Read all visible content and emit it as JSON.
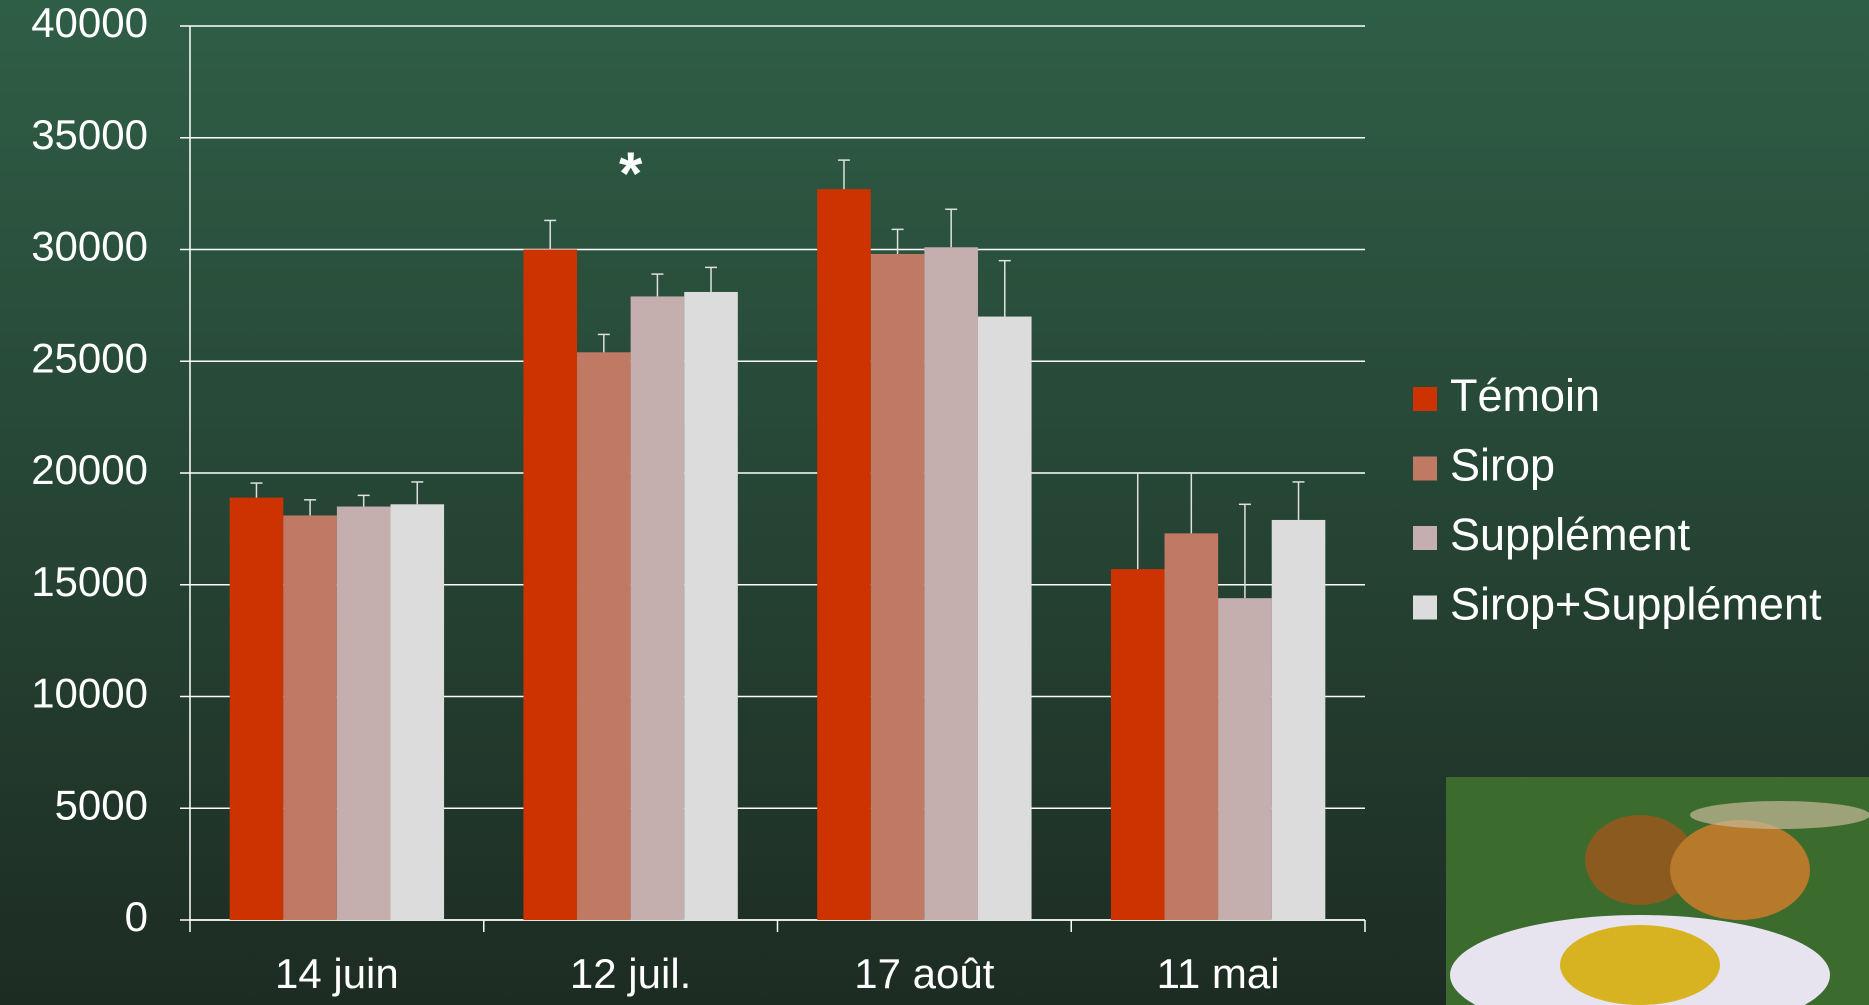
{
  "chart_data": {
    "type": "bar",
    "categories": [
      "14 juin",
      "12 juil.",
      "17 août",
      "11 mai"
    ],
    "series": [
      {
        "name": "Témoin",
        "color": "#cc3300",
        "values": [
          18900,
          30000,
          32700,
          15700
        ],
        "errors": [
          650,
          1300,
          1300,
          4300
        ]
      },
      {
        "name": "Sirop",
        "color": "#c07a63",
        "values": [
          18100,
          25400,
          29800,
          17300
        ],
        "errors": [
          700,
          800,
          1100,
          2700
        ]
      },
      {
        "name": "Supplément",
        "color": "#c4aeae",
        "values": [
          18500,
          27900,
          30100,
          14400
        ],
        "errors": [
          500,
          1000,
          1700,
          4200
        ]
      },
      {
        "name": "Sirop+Supplément",
        "color": "#dcdcdc",
        "values": [
          18600,
          28100,
          27000,
          17900
        ],
        "errors": [
          1000,
          1100,
          2500,
          1700
        ]
      }
    ],
    "annotation": "*",
    "ylim": [
      0,
      40000
    ],
    "yticks": [
      0,
      5000,
      10000,
      15000,
      20000,
      25000,
      30000,
      35000,
      40000
    ],
    "grid": true,
    "legend": "right"
  }
}
